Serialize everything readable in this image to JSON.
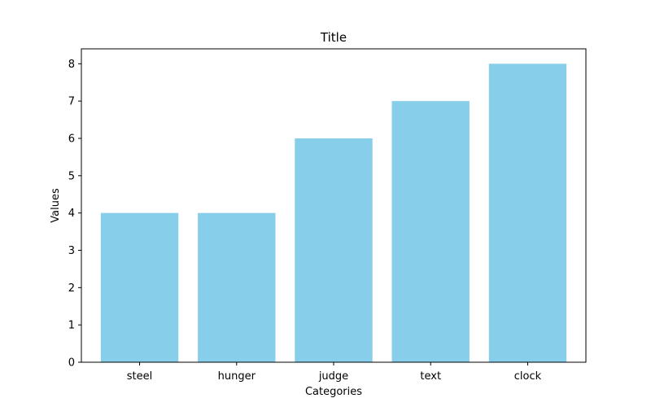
{
  "chart_data": {
    "type": "bar",
    "title": "Title",
    "xlabel": "Categories",
    "ylabel": "Values",
    "categories": [
      "steel",
      "hunger",
      "judge",
      "text",
      "clock"
    ],
    "values": [
      4,
      4,
      6,
      7,
      8
    ],
    "ylim": [
      0,
      8.4
    ],
    "yticks": [
      0,
      1,
      2,
      3,
      4,
      5,
      6,
      7,
      8
    ],
    "bar_color": "#87CEEB",
    "grid": false,
    "legend": "none"
  }
}
